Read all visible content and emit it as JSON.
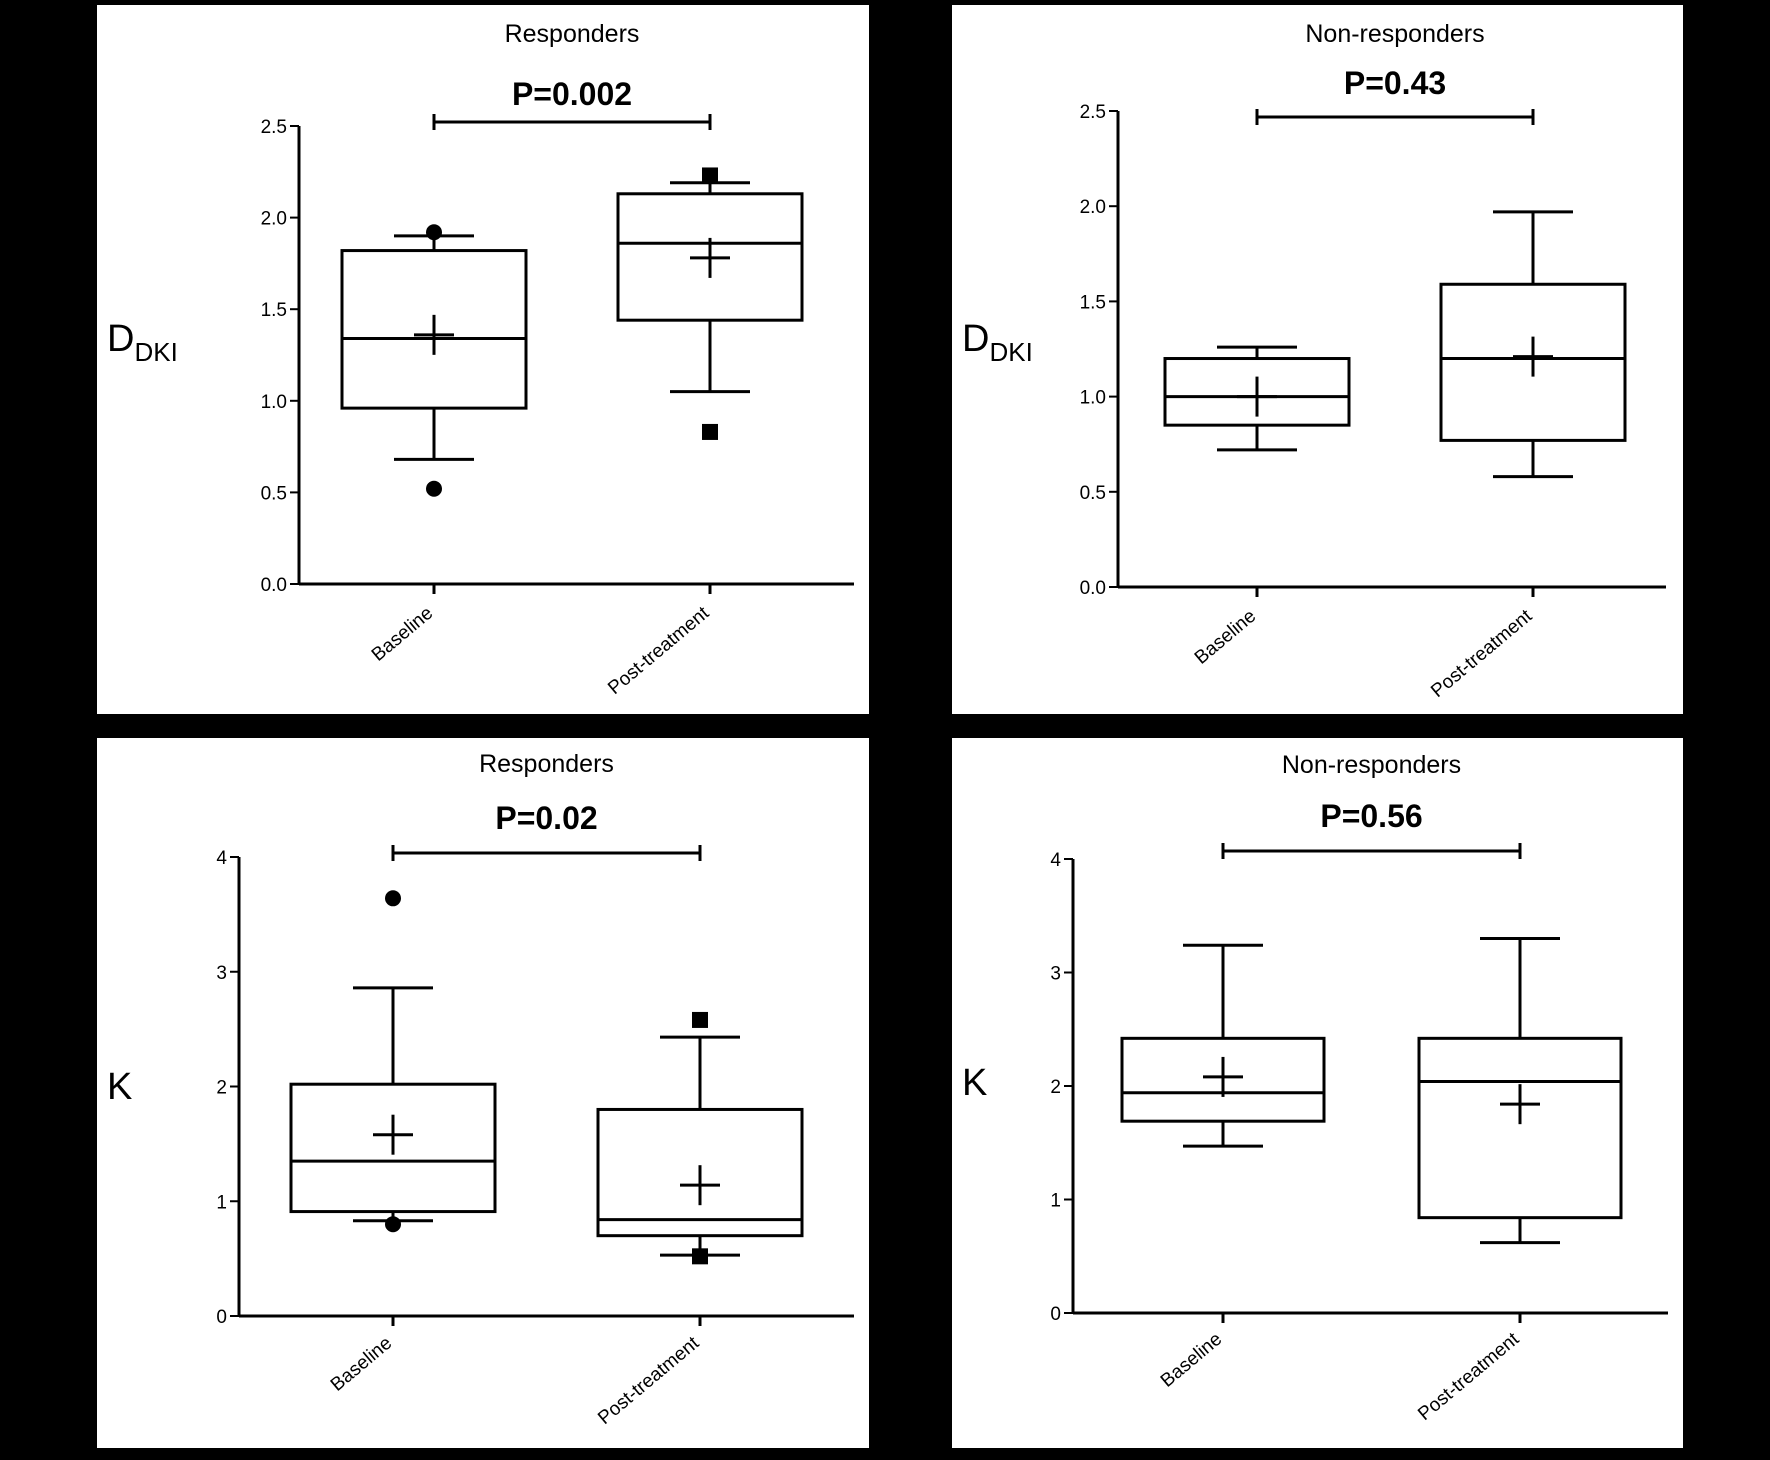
{
  "colors": {
    "background": "#000000",
    "panel": "#ffffff",
    "ink": "#000000"
  },
  "chart_data": [
    {
      "type": "box",
      "title": "Responders",
      "p_value": "P=0.002",
      "ylabel": "D",
      "ylabel_sub": "DKI",
      "ylim": [
        0,
        2.5
      ],
      "yticks": [
        "0.0",
        "0.5",
        "1.0",
        "1.5",
        "2.0",
        "2.5"
      ],
      "categories": [
        "Baseline",
        "Post-treatment"
      ],
      "boxes": [
        {
          "whisker_low": 0.68,
          "q1": 0.96,
          "median": 1.34,
          "q3": 1.82,
          "whisker_high": 1.9,
          "mean": 1.36,
          "outliers": [
            0.52,
            1.92
          ],
          "marker": "circle"
        },
        {
          "whisker_low": 1.05,
          "q1": 1.44,
          "median": 1.86,
          "q3": 2.13,
          "whisker_high": 2.19,
          "mean": 1.78,
          "outliers": [
            0.83,
            2.23
          ],
          "marker": "square"
        }
      ]
    },
    {
      "type": "box",
      "title": "Non-responders",
      "p_value": "P=0.43",
      "ylabel": "D",
      "ylabel_sub": "DKI",
      "ylim": [
        0,
        2.5
      ],
      "yticks": [
        "0.0",
        "0.5",
        "1.0",
        "1.5",
        "2.0",
        "2.5"
      ],
      "categories": [
        "Baseline",
        "Post-treatment"
      ],
      "boxes": [
        {
          "whisker_low": 0.72,
          "q1": 0.85,
          "median": 1.0,
          "q3": 1.2,
          "whisker_high": 1.26,
          "mean": 1.0,
          "outliers": [],
          "marker": "circle"
        },
        {
          "whisker_low": 0.58,
          "q1": 0.77,
          "median": 1.2,
          "q3": 1.59,
          "whisker_high": 1.97,
          "mean": 1.21,
          "outliers": [],
          "marker": "square"
        }
      ]
    },
    {
      "type": "box",
      "title": "Responders",
      "p_value": "P=0.02",
      "ylabel": "K",
      "ylabel_sub": "",
      "ylim": [
        0,
        4
      ],
      "yticks": [
        "0",
        "1",
        "2",
        "3",
        "4"
      ],
      "categories": [
        "Baseline",
        "Post-treatment"
      ],
      "boxes": [
        {
          "whisker_low": 0.83,
          "q1": 0.91,
          "median": 1.35,
          "q3": 2.02,
          "whisker_high": 2.86,
          "mean": 1.58,
          "outliers": [
            0.8,
            3.64
          ],
          "marker": "circle"
        },
        {
          "whisker_low": 0.53,
          "q1": 0.7,
          "median": 0.84,
          "q3": 1.8,
          "whisker_high": 2.43,
          "mean": 1.14,
          "outliers": [
            0.52,
            2.58
          ],
          "marker": "square"
        }
      ]
    },
    {
      "type": "box",
      "title": "Non-responders",
      "p_value": "P=0.56",
      "ylabel": "K",
      "ylabel_sub": "",
      "ylim": [
        0,
        4
      ],
      "yticks": [
        "0",
        "1",
        "2",
        "3",
        "4"
      ],
      "categories": [
        "Baseline",
        "Post-treatment"
      ],
      "boxes": [
        {
          "whisker_low": 1.47,
          "q1": 1.69,
          "median": 1.94,
          "q3": 2.42,
          "whisker_high": 3.24,
          "mean": 2.08,
          "outliers": [],
          "marker": "circle"
        },
        {
          "whisker_low": 0.62,
          "q1": 0.84,
          "median": 2.04,
          "q3": 2.42,
          "whisker_high": 3.3,
          "mean": 1.84,
          "outliers": [],
          "marker": "square"
        }
      ]
    }
  ]
}
